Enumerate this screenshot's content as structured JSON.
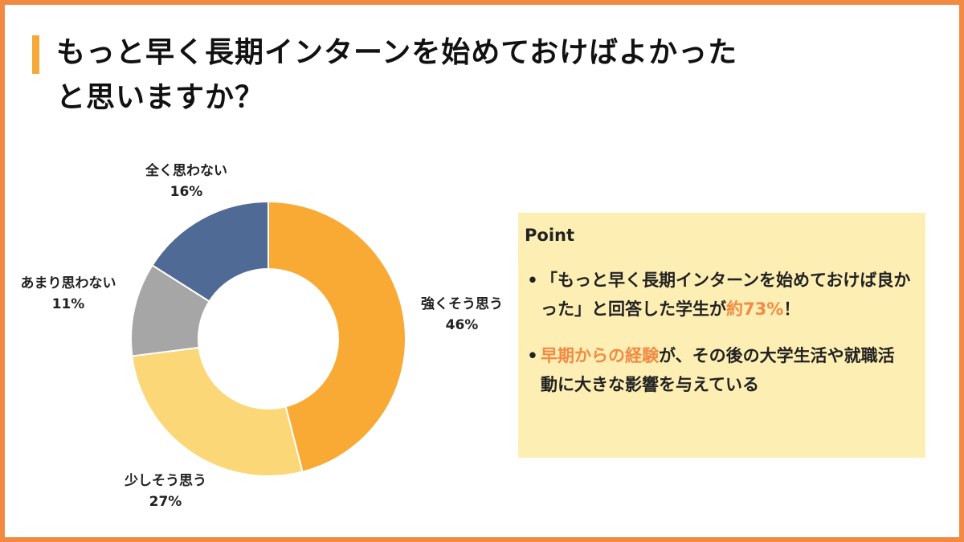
{
  "title": {
    "line1": "もっと早く長期インターンを始めておけばよかった",
    "line2": "と思いますか？"
  },
  "chart_data": {
    "type": "pie",
    "categories": [
      "強くそう思う",
      "少しそう思う",
      "あまり思わない",
      "全く思わない"
    ],
    "values": [
      46,
      27,
      11,
      16
    ],
    "value_labels": [
      "46%",
      "27%",
      "11%",
      "16%"
    ],
    "colors": [
      "#f9aa34",
      "#fbd778",
      "#a6a6a6",
      "#4e6a95"
    ],
    "donut": true,
    "start": "top, clockwise"
  },
  "point": {
    "heading": "Point",
    "bullet_symbol": "•",
    "b1": {
      "pre": "「もっと早く長期インターンを始めておけば良かった」と回答した学生が",
      "highlight": "約73%",
      "post": "！"
    },
    "b2": {
      "highlight": "早期からの経験",
      "post": "が、その後の大学生活や就職活動に大きな影響を与えている"
    },
    "highlight_color": "#f28a44"
  },
  "accent_color": "#f4a93a",
  "border_color": "#f28a44"
}
